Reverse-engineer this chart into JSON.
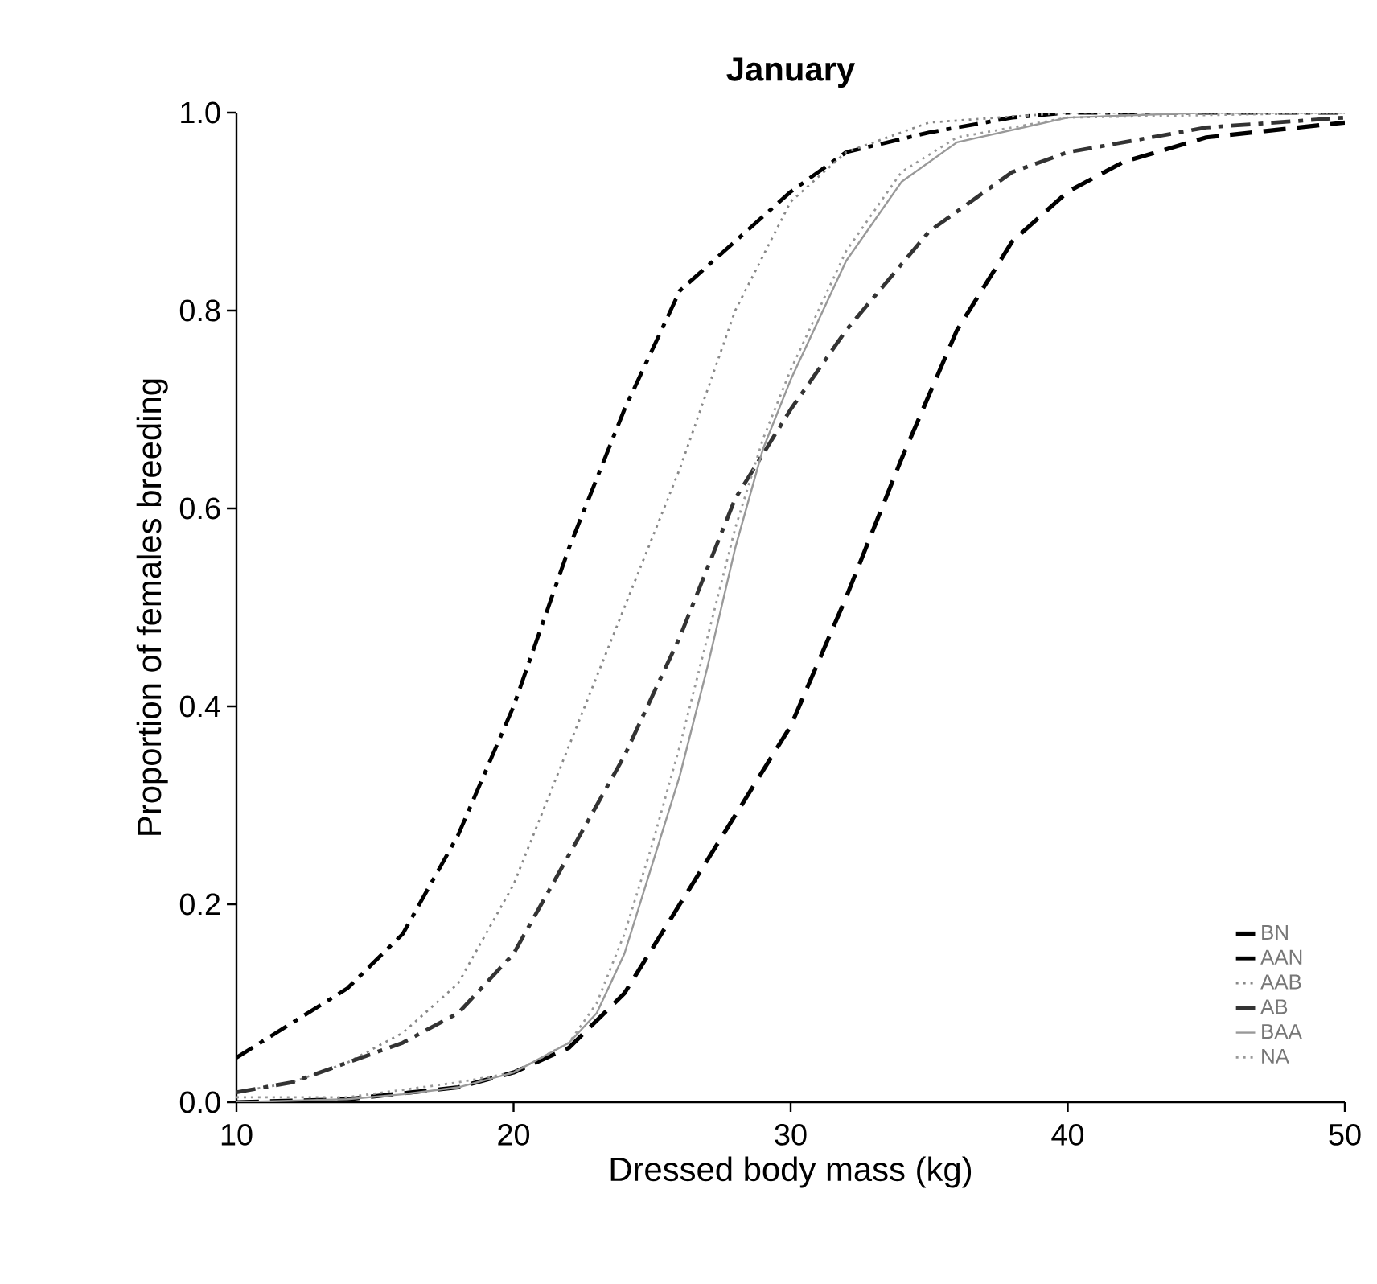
{
  "chart_data": {
    "type": "line",
    "title": "January",
    "xlabel": "Dressed body mass (kg)",
    "ylabel": "Proportion of females breeding",
    "xlim": [
      10,
      50
    ],
    "xticks": [
      10,
      20,
      30,
      40,
      50
    ],
    "ylim": [
      0,
      1
    ],
    "yticks": [
      {
        "value": 0,
        "label": "0.0"
      },
      {
        "value": 0.2,
        "label": "0.2"
      },
      {
        "value": 0.4,
        "label": "0.4"
      },
      {
        "value": 0.6,
        "label": "0.6"
      },
      {
        "value": 0.8,
        "label": "0.8"
      },
      {
        "value": 1,
        "label": "1.0"
      }
    ],
    "legend": "bottom right",
    "grid": false,
    "marker": "none",
    "series": [
      {
        "name": "BN",
        "color": "#000000",
        "line_style": "dashed",
        "x": [
          10,
          14,
          18,
          20,
          22,
          24,
          26,
          28,
          30,
          32,
          34,
          36,
          38,
          40,
          42,
          45,
          50
        ],
        "values": [
          0.0,
          0.003,
          0.015,
          0.03,
          0.055,
          0.11,
          0.2,
          0.29,
          0.38,
          0.51,
          0.65,
          0.78,
          0.87,
          0.92,
          0.95,
          0.975,
          0.99
        ]
      },
      {
        "name": "AAN",
        "color": "#000000",
        "line_style": "dashdot",
        "x": [
          10,
          12,
          14,
          16,
          18,
          20,
          22,
          24,
          26,
          28,
          30,
          32,
          35,
          38,
          40,
          50
        ],
        "values": [
          0.045,
          0.08,
          0.115,
          0.17,
          0.27,
          0.4,
          0.56,
          0.7,
          0.82,
          0.87,
          0.92,
          0.96,
          0.98,
          0.995,
          1.0,
          1.0
        ]
      },
      {
        "name": "AAB",
        "color": "#888888",
        "line_style": "dotted",
        "x": [
          10,
          12,
          14,
          16,
          18,
          20,
          22,
          24,
          26,
          28,
          30,
          32,
          35,
          40,
          50
        ],
        "values": [
          0.01,
          0.02,
          0.04,
          0.07,
          0.12,
          0.22,
          0.36,
          0.5,
          0.64,
          0.8,
          0.91,
          0.96,
          0.99,
          1.0,
          1.0
        ]
      },
      {
        "name": "AB",
        "color": "#333333",
        "line_style": "dashdot",
        "x": [
          10,
          12,
          14,
          16,
          18,
          20,
          22,
          24,
          26,
          28,
          30,
          32,
          35,
          38,
          40,
          45,
          50
        ],
        "values": [
          0.01,
          0.02,
          0.04,
          0.06,
          0.09,
          0.15,
          0.25,
          0.35,
          0.47,
          0.61,
          0.7,
          0.78,
          0.88,
          0.94,
          0.96,
          0.985,
          0.995
        ]
      },
      {
        "name": "BAA",
        "color": "#999999",
        "line_style": "solid",
        "x": [
          10,
          14,
          16,
          18,
          20,
          22,
          23,
          24,
          25,
          26,
          27,
          28,
          29,
          30,
          31,
          32,
          34,
          36,
          40,
          45,
          50
        ],
        "values": [
          0.0,
          0.003,
          0.008,
          0.015,
          0.03,
          0.06,
          0.09,
          0.15,
          0.24,
          0.33,
          0.44,
          0.56,
          0.66,
          0.73,
          0.79,
          0.85,
          0.93,
          0.97,
          0.995,
          1.0,
          1.0
        ]
      },
      {
        "name": "NA",
        "color": "#999999",
        "line_style": "dotted",
        "x": [
          10,
          14,
          18,
          20,
          22,
          23,
          24,
          25,
          26,
          27,
          28,
          29,
          30,
          32,
          34,
          36,
          40,
          50
        ],
        "values": [
          0.005,
          0.005,
          0.02,
          0.03,
          0.06,
          0.1,
          0.17,
          0.26,
          0.36,
          0.47,
          0.58,
          0.67,
          0.74,
          0.86,
          0.94,
          0.975,
          0.995,
          1.0
        ]
      }
    ]
  }
}
